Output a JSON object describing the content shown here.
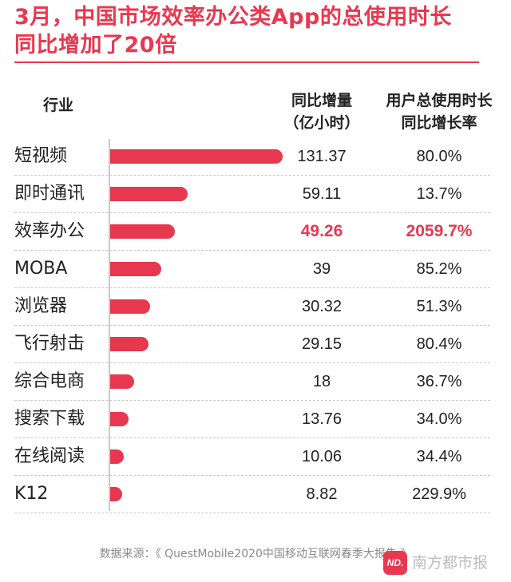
{
  "title_lines": [
    "3月，中国市场效率办公类App的总使用时长",
    "同比增加了20倍"
  ],
  "headers": {
    "industry": "行业",
    "usage": [
      "同比增量",
      "（亿小时）"
    ],
    "growth": [
      "用户总使用时长",
      "同比增长率"
    ]
  },
  "source": "数据来源：《 QuestMobile2020中国移动互联网春季大报告 》",
  "watermark": {
    "logo": "ND.",
    "text": "南方都市报"
  },
  "colors": {
    "accent": "#e8384f",
    "text": "#222222",
    "muted": "#8a8a8a"
  },
  "chart_data": {
    "type": "bar",
    "orientation": "horizontal",
    "categories": [
      "短视频",
      "即时通讯",
      "效率办公",
      "MOBA",
      "浏览器",
      "飞行射击",
      "综合电商",
      "搜索下载",
      "在线阅读",
      "K12"
    ],
    "values": [
      131.37,
      59.11,
      49.26,
      39,
      30.32,
      29.15,
      18,
      13.76,
      10.06,
      8.82
    ],
    "value_labels": [
      "131.37",
      "59.11",
      "49.26",
      "39",
      "30.32",
      "29.15",
      "18",
      "13.76",
      "10.06",
      "8.82"
    ],
    "growth_labels": [
      "80.0%",
      "13.7%",
      "2059.7%",
      "85.2%",
      "51.3%",
      "80.4%",
      "36.7%",
      "34.0%",
      "34.4%",
      "229.9%"
    ],
    "highlight_index": 2,
    "xlim": [
      0,
      131.37
    ],
    "grid": false
  }
}
